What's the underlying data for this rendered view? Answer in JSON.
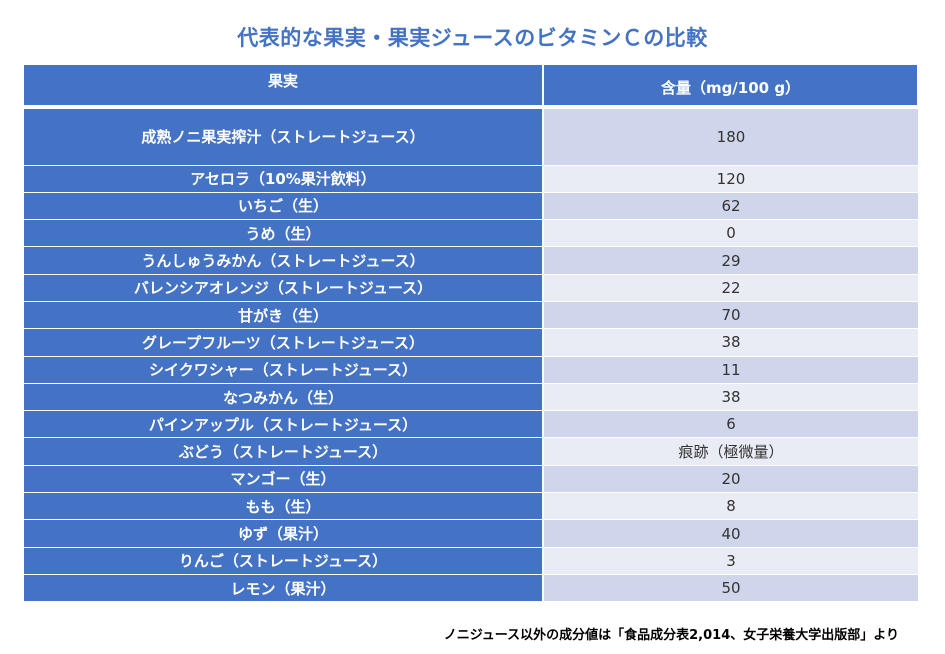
{
  "title": "代表的な果実・果実ジュースのビタミンＣの比較",
  "table": {
    "headers": [
      "果実",
      "含量（mg/100 g）"
    ],
    "rows": [
      {
        "name": "成熟ノニ果実搾汁（ストレートジュース）",
        "value": "180"
      },
      {
        "name": "アセロラ（10%果汁飲料）",
        "value": "120"
      },
      {
        "name": "いちご（生）",
        "value": "62"
      },
      {
        "name": "うめ（生）",
        "value": "0"
      },
      {
        "name": "うんしゅうみかん（ストレートジュース）",
        "value": "29"
      },
      {
        "name": "バレンシアオレンジ（ストレートジュース）",
        "value": "22"
      },
      {
        "name": "甘がき（生）",
        "value": "70"
      },
      {
        "name": "グレープフルーツ（ストレートジュース）",
        "value": "38"
      },
      {
        "name": "シイクワシャー（ストレートジュース）",
        "value": "11"
      },
      {
        "name": "なつみかん（生）",
        "value": "38"
      },
      {
        "name": "パインアップル（ストレートジュース）",
        "value": "6"
      },
      {
        "name": "ぶどう（ストレートジュース）",
        "value": "痕跡（極微量）"
      },
      {
        "name": "マンゴー（生）",
        "value": "20"
      },
      {
        "name": "もも（生）",
        "value": "8"
      },
      {
        "name": "ゆず（果汁）",
        "value": "40"
      },
      {
        "name": "りんご（ストレートジュース）",
        "value": "3"
      },
      {
        "name": "レモン（果汁）",
        "value": "50"
      }
    ]
  },
  "footnote": "ノニジュース以外の成分値は「食品成分表2,014、女子栄養大学出版部」より",
  "colors": {
    "accent": "#4472c4",
    "row_band_dark": "#cfd5ea",
    "row_band_light": "#e9ebf5"
  }
}
